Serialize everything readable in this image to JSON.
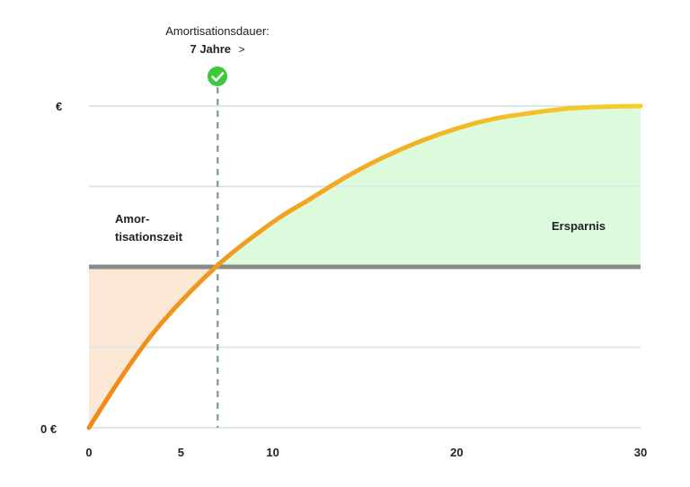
{
  "chart_data": {
    "type": "area",
    "x_ticks": [
      0,
      5,
      10,
      20,
      30
    ],
    "xlim": [
      0,
      30
    ],
    "y_tick_labels": {
      "top": "€",
      "bottom": "0 €"
    },
    "grid": true,
    "investment_level": 0.5,
    "curve": {
      "x": [
        0,
        2,
        4,
        7,
        10,
        12,
        14,
        16,
        18,
        20,
        22,
        24,
        26,
        28,
        30
      ],
      "y": [
        0.0,
        0.177,
        0.329,
        0.505,
        0.639,
        0.71,
        0.78,
        0.84,
        0.89,
        0.93,
        0.96,
        0.978,
        0.992,
        0.998,
        1.0
      ]
    },
    "payback_year": 7,
    "annotation": {
      "title": "Amortisationsdauer:",
      "value": "7 Jahre",
      "arrow": ">"
    },
    "regions": {
      "amortization": {
        "label_line1": "Amor-",
        "label_line2": "tisationszeit",
        "color": "#fbe8d5"
      },
      "savings": {
        "label": "Ersparnis",
        "color": "#dcfadc"
      }
    },
    "colors": {
      "curve_start": "#f08a1a",
      "curve_end": "#f5cf2b",
      "investment_line": "#8a8a8a",
      "grid": "#dde8e6",
      "payback_line": "#8aa39e",
      "check": "#3cc93c"
    },
    "check_icon": "check-circle-icon"
  }
}
